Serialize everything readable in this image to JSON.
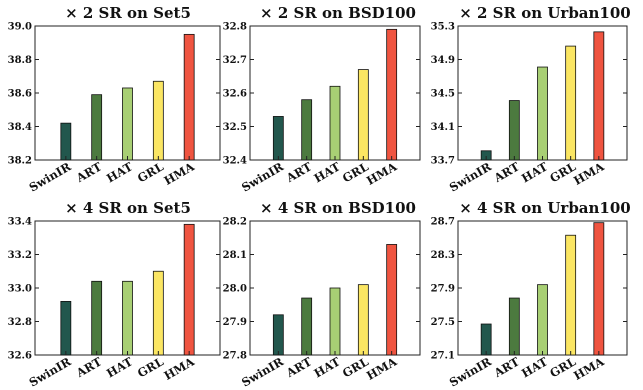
{
  "colors": [
    "#22574d",
    "#4c7a3f",
    "#a8cf74",
    "#fbe663",
    "#ef5440"
  ],
  "chart_data": [
    {
      "type": "bar",
      "title": "× 2 SR on Set5",
      "categories": [
        "SwinIR",
        "ART",
        "HAT",
        "GRL",
        "HMA"
      ],
      "values": [
        38.42,
        38.59,
        38.63,
        38.67,
        38.95
      ],
      "ylim": [
        38.2,
        39.0
      ],
      "yticks": [
        "38.2",
        "38.4",
        "38.6",
        "38.8",
        "39.0"
      ]
    },
    {
      "type": "bar",
      "title": "× 2 SR on BSD100",
      "categories": [
        "SwinIR",
        "ART",
        "HAT",
        "GRL",
        "HMA"
      ],
      "values": [
        32.53,
        32.58,
        32.62,
        32.67,
        32.79
      ],
      "ylim": [
        32.4,
        32.8
      ],
      "yticks": [
        "32.4",
        "32.5",
        "32.6",
        "32.7",
        "32.8"
      ]
    },
    {
      "type": "bar",
      "title": "× 2 SR on Urban100",
      "categories": [
        "SwinIR",
        "ART",
        "HAT",
        "GRL",
        "HMA"
      ],
      "values": [
        33.81,
        34.41,
        34.81,
        35.06,
        35.23
      ],
      "ylim": [
        33.7,
        35.3
      ],
      "yticks": [
        "33.7",
        "34.1",
        "34.5",
        "34.9",
        "35.3"
      ]
    },
    {
      "type": "bar",
      "title": "× 4 SR on Set5",
      "categories": [
        "SwinIR",
        "ART",
        "HAT",
        "GRL",
        "HMA"
      ],
      "values": [
        32.92,
        33.04,
        33.04,
        33.1,
        33.38
      ],
      "ylim": [
        32.6,
        33.4
      ],
      "yticks": [
        "32.6",
        "32.8",
        "33.0",
        "33.2",
        "33.4"
      ]
    },
    {
      "type": "bar",
      "title": "× 4 SR on BSD100",
      "categories": [
        "SwinIR",
        "ART",
        "HAT",
        "GRL",
        "HMA"
      ],
      "values": [
        27.92,
        27.97,
        28.0,
        28.01,
        28.13
      ],
      "ylim": [
        27.8,
        28.2
      ],
      "yticks": [
        "27.8",
        "27.9",
        "28.0",
        "28.1",
        "28.2"
      ]
    },
    {
      "type": "bar",
      "title": "× 4 SR on Urban100",
      "categories": [
        "SwinIR",
        "ART",
        "HAT",
        "GRL",
        "HMA"
      ],
      "values": [
        27.47,
        27.78,
        27.94,
        28.53,
        28.68
      ],
      "ylim": [
        27.1,
        28.7
      ],
      "yticks": [
        "27.1",
        "27.5",
        "27.9",
        "28.3",
        "28.7"
      ]
    }
  ]
}
